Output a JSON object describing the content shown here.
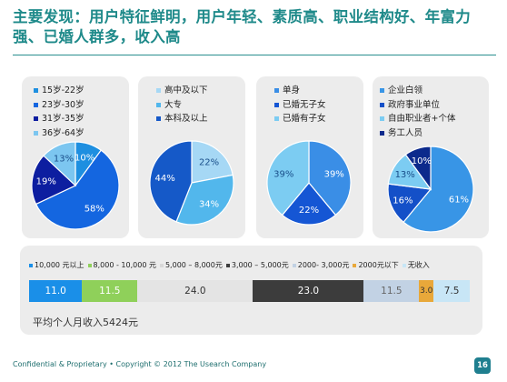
{
  "title": "主要发现：用户特征鲜明，用户年轻、素质高、职业结构好、年富力强、已婚人群多，收入高",
  "chart_data": [
    {
      "type": "pie",
      "categories": [
        "15岁-22岁",
        "23岁-30岁",
        "31岁-35岁",
        "36岁-64岁"
      ],
      "values": [
        10,
        58,
        19,
        13
      ],
      "colors": [
        "#1e8fe0",
        "#1466e0",
        "#0d1ea0",
        "#7cc6f0"
      ],
      "legend": "top-left"
    },
    {
      "type": "pie",
      "categories": [
        "高中及以下",
        "大专",
        "本科及以上"
      ],
      "values": [
        22,
        34,
        44
      ],
      "colors": [
        "#a6d8f5",
        "#52b7ec",
        "#1559c8"
      ],
      "legend": "top-left"
    },
    {
      "type": "pie",
      "categories": [
        "单身",
        "已婚无子女",
        "已婚有子女"
      ],
      "values": [
        39,
        22,
        39
      ],
      "colors": [
        "#3a8ee6",
        "#1556d4",
        "#7cccf2"
      ],
      "legend": "top-left"
    },
    {
      "type": "pie",
      "categories": [
        "企业白领",
        "政府事业单位",
        "自由职业者+个体",
        "务工人员"
      ],
      "values": [
        61,
        16,
        13,
        10
      ],
      "colors": [
        "#3895e6",
        "#1450c8",
        "#7cccf2",
        "#0c2a8c"
      ],
      "legend": "top-left"
    },
    {
      "type": "bar",
      "stacked": true,
      "orientation": "horizontal",
      "categories": [
        "10,000 元以上",
        "8,000 - 10,000 元",
        "5,000 – 8,000元",
        "3,000 – 5,000元",
        "2000- 3,000元",
        "2000元以下",
        "无收入"
      ],
      "values": [
        11.0,
        11.5,
        24.0,
        23.0,
        11.5,
        3.0,
        7.5
      ],
      "labels": [
        "11.0",
        "11.5",
        "24.0",
        "23.0",
        "11.5",
        "3.0",
        "7.5"
      ],
      "colors": [
        "#1a8fe8",
        "#8fd05a",
        "#e4e4e4",
        "#3c3c3c",
        "#c2d2e4",
        "#e8a83a",
        "#c8e6f6"
      ],
      "label_colors": [
        "#ffffff",
        "#ffffff",
        "#333333",
        "#ffffff",
        "#666666",
        "#333333",
        "#333333"
      ],
      "legend": "top"
    }
  ],
  "income": {
    "average": "平均个人月收入5424元"
  },
  "footer": {
    "copyright": "Confidential & Proprietary • Copyright © 2012 The Usearch Company",
    "page_number": "16"
  }
}
